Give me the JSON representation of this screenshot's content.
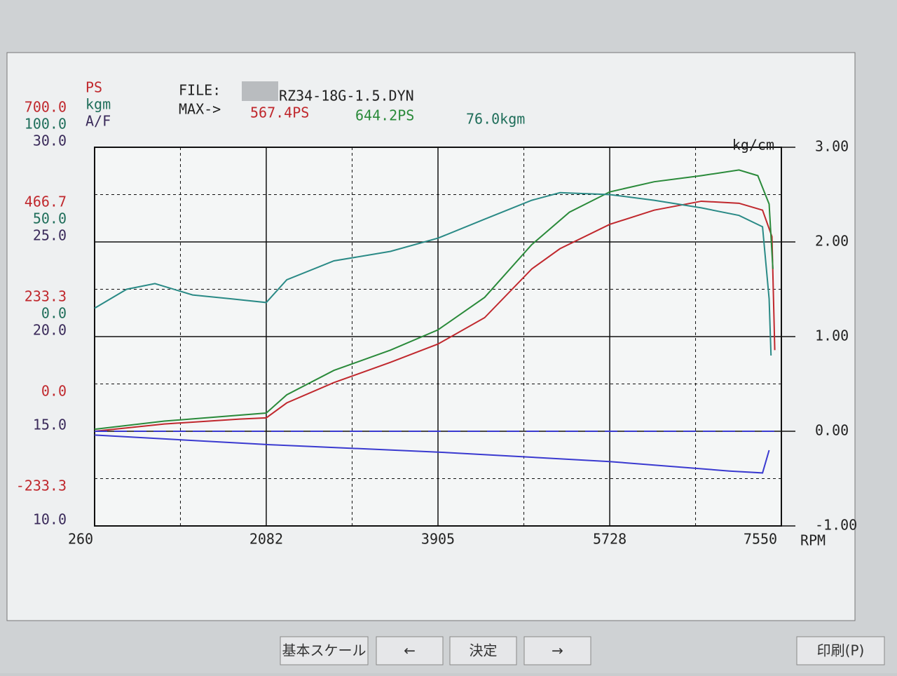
{
  "header": {
    "file_label": "FILE:",
    "file_name": "RZ34-18G-1.5.DYN",
    "max_label": "MAX->",
    "max_values": [
      "567.4PS",
      "644.2PS",
      "76.0kgm"
    ]
  },
  "chart_data": {
    "type": "line",
    "axes": [
      {
        "label": "PS",
        "color": "#c0282d",
        "lim": [
          -233.3,
          700
        ],
        "ticks": [
          {
            "value": 700,
            "label": "700.0"
          },
          {
            "value": 466.7,
            "label": "466.7"
          },
          {
            "value": 233.3,
            "label": "233.3"
          },
          {
            "value": 0,
            "label": "0.0"
          },
          {
            "value": -233.3,
            "label": "-233.3"
          }
        ]
      },
      {
        "label": "kgm",
        "color": "#1f6e5a",
        "lim": [
          -100,
          100
        ],
        "ticks": [
          {
            "value": 100,
            "label": "100.0"
          },
          {
            "value": 50,
            "label": "50.0"
          },
          {
            "value": 0,
            "label": "0.0"
          }
        ]
      },
      {
        "label": "A/F",
        "color": "#3a2a5a",
        "lim": [
          10,
          30
        ],
        "ticks": [
          {
            "value": 30,
            "label": "30.0"
          },
          {
            "value": 25,
            "label": "25.0"
          },
          {
            "value": 20,
            "label": "20.0"
          },
          {
            "value": 15,
            "label": "15.0"
          },
          {
            "value": 10,
            "label": "10.0"
          }
        ]
      },
      {
        "label": "kg/cm",
        "color": "#222222",
        "lim": [
          -1,
          3
        ],
        "ticks": [
          {
            "value": 3,
            "label": "3.00"
          },
          {
            "value": 2,
            "label": "2.00"
          },
          {
            "value": 1,
            "label": "1.00"
          },
          {
            "value": 0,
            "label": "0.00"
          },
          {
            "value": -1,
            "label": "-1.00"
          }
        ]
      }
    ],
    "x_label": "RPM",
    "xlim": [
      260,
      7550
    ],
    "xticks": [
      260,
      2082,
      3905,
      5728,
      7550
    ],
    "series": [
      {
        "color": "#c0282d",
        "axis": 0,
        "x": [
          260,
          1000,
          1800,
          2082,
          2300,
          2800,
          3400,
          3905,
          4400,
          4900,
          5200,
          5728,
          6200,
          6700,
          7100,
          7350,
          7450,
          7480
        ],
        "values": [
          0,
          18,
          30,
          33,
          70,
          120,
          170,
          215,
          280,
          400,
          450,
          510,
          545,
          567,
          562,
          545,
          480,
          200
        ]
      },
      {
        "color": "#2a8a3a",
        "axis": 0,
        "x": [
          260,
          1000,
          2082,
          2300,
          2800,
          3400,
          3905,
          4400,
          4900,
          5300,
          5728,
          6200,
          6700,
          7100,
          7300,
          7420,
          7460
        ],
        "values": [
          5,
          25,
          45,
          90,
          150,
          200,
          250,
          330,
          460,
          540,
          590,
          615,
          630,
          644,
          630,
          560,
          400
        ]
      },
      {
        "color": "#2a8a86",
        "axis": 1,
        "x": [
          260,
          600,
          900,
          1300,
          1700,
          2082,
          2300,
          2800,
          3400,
          3905,
          4400,
          4900,
          5200,
          5728,
          6200,
          6700,
          7100,
          7350,
          7420,
          7440
        ],
        "values": [
          15,
          25,
          28,
          22,
          20,
          18,
          30,
          40,
          45,
          52,
          62,
          72,
          76,
          75,
          72,
          68,
          64,
          58,
          20,
          -10
        ]
      },
      {
        "color": "#3a3ad0",
        "axis": 2,
        "x": [
          260,
          2082,
          3905,
          5728,
          7000,
          7350,
          7420
        ],
        "values": [
          14.8,
          14.3,
          13.9,
          13.4,
          12.9,
          12.8,
          14.0
        ]
      },
      {
        "color": "#3a3ad0",
        "axis": 3,
        "dashed": true,
        "x": [
          260,
          7550
        ],
        "values": [
          0,
          0
        ]
      }
    ]
  },
  "buttons": [
    "基本スケール",
    "←",
    "決定",
    "→",
    "印刷(P)"
  ]
}
